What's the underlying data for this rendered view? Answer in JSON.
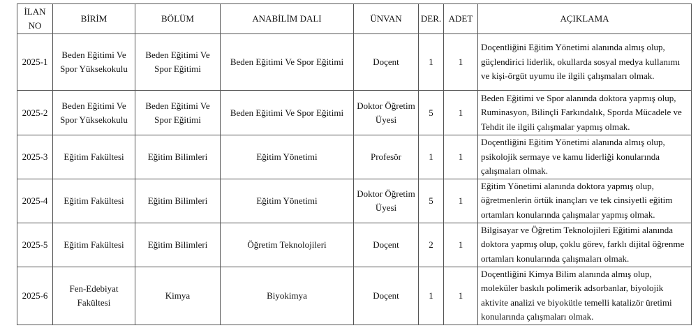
{
  "headers": [
    "İLAN NO",
    "BİRİM",
    "BÖLÜM",
    "ANABİLİM DALI",
    "ÜNVAN",
    "DER.",
    "ADET",
    "AÇIKLAMA"
  ],
  "rows": [
    {
      "ilan_no": "2025-1",
      "birim": "Beden Eğitimi Ve Spor Yüksekokulu",
      "bolum": "Beden Eğitimi Ve Spor Eğitimi",
      "anabilim_dali": "Beden Eğitimi Ve Spor Eğitimi",
      "unvan": "Doçent",
      "der": "1",
      "adet": "1",
      "aciklama": "Doçentliğini Eğitim Yönetimi alanında almış olup, güçlendirici liderlik, okullarda sosyal medya kullanımı ve kişi-örgüt uyumu ile ilgili çalışmaları olmak."
    },
    {
      "ilan_no": "2025-2",
      "birim": "Beden Eğitimi Ve Spor Yüksekokulu",
      "bolum": "Beden Eğitimi Ve Spor Eğitimi",
      "anabilim_dali": "Beden Eğitimi Ve Spor Eğitimi",
      "unvan": "Doktor Öğretim Üyesi",
      "der": "5",
      "adet": "1",
      "aciklama": "Beden Eğitimi ve Spor alanında doktora yapmış olup, Ruminasyon, Bilinçli Farkındalık, Sporda Mücadele ve Tehdit ile ilgili çalışmalar yapmış olmak."
    },
    {
      "ilan_no": "2025-3",
      "birim": "Eğitim Fakültesi",
      "bolum": "Eğitim Bilimleri",
      "anabilim_dali": "Eğitim Yönetimi",
      "unvan": "Profesör",
      "der": "1",
      "adet": "1",
      "aciklama": "Doçentliğini Eğitim Yönetimi alanında almış olup, psikolojik sermaye ve kamu liderliği konularında çalışmaları olmak."
    },
    {
      "ilan_no": "2025-4",
      "birim": "Eğitim Fakültesi",
      "bolum": "Eğitim Bilimleri",
      "anabilim_dali": "Eğitim Yönetimi",
      "unvan": "Doktor Öğretim Üyesi",
      "der": "5",
      "adet": "1",
      "aciklama": "Eğitim Yönetimi alanında doktora yapmış olup, öğretmenlerin örtük inançları ve tek cinsiyetli eğitim ortamları konularında çalışmalar yapmış olmak."
    },
    {
      "ilan_no": "2025-5",
      "birim": "Eğitim Fakültesi",
      "bolum": "Eğitim Bilimleri",
      "anabilim_dali": "Öğretim Teknolojileri",
      "unvan": "Doçent",
      "der": "2",
      "adet": "1",
      "aciklama": "Bilgisayar ve Öğretim Teknolojileri Eğitimi alanında doktora yapmış olup, çoklu görev, farklı dijital öğrenme ortamları konularında çalışmaları olmak."
    },
    {
      "ilan_no": "2025-6",
      "birim": "Fen-Edebiyat Fakültesi",
      "bolum": "Kimya",
      "anabilim_dali": "Biyokimya",
      "unvan": "Doçent",
      "der": "1",
      "adet": "1",
      "aciklama": "Doçentliğini Kimya Bilim alanında almış olup, moleküler baskılı polimerik adsorbanlar, biyolojik aktivite analizi ve biyokütle temelli katalizör üretimi konularında çalışmaları olmak."
    }
  ]
}
